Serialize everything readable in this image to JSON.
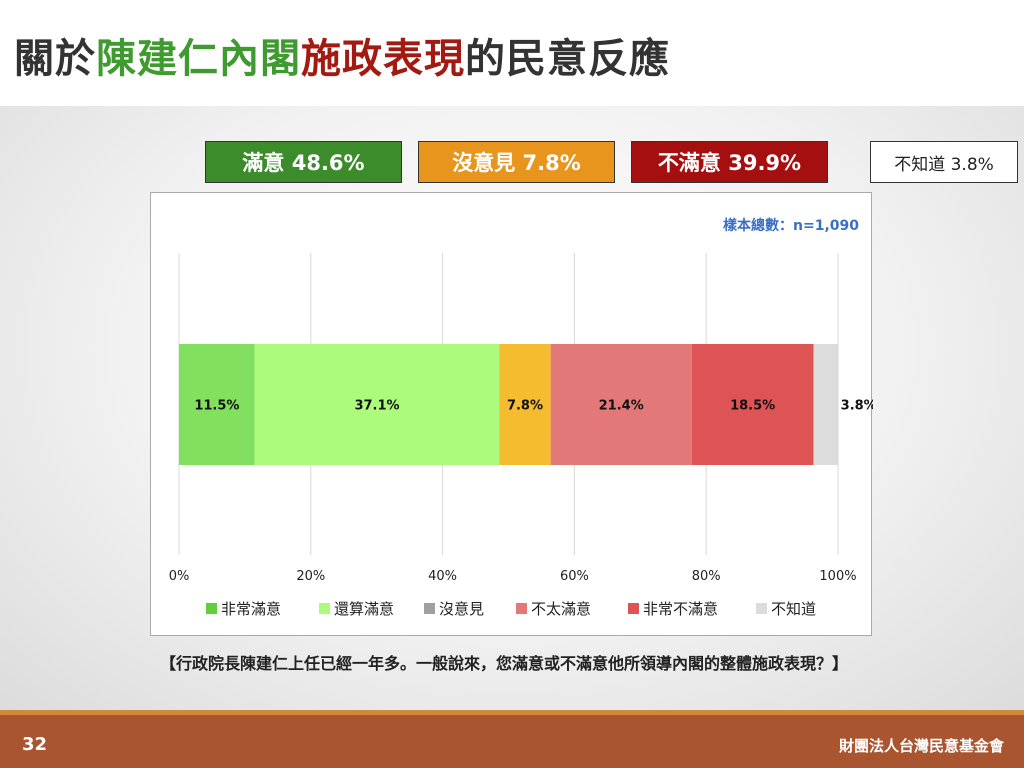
{
  "title": {
    "part1": "關於",
    "part2": "陳建仁內閣",
    "part3": "施政表現",
    "part4": "的民意反應"
  },
  "summary": {
    "satisfied": "滿意 48.6%",
    "neutral": "沒意見 7.8%",
    "dissatisfied": "不滿意 39.9%",
    "unknown": "不知道 3.8%"
  },
  "chart_data": {
    "type": "bar",
    "orientation": "horizontal-stacked",
    "sample_note": "樣本總數：n=1,090",
    "series": [
      {
        "name": "非常滿意",
        "value": 11.5,
        "label": "11.5%",
        "color": "#82e05e"
      },
      {
        "name": "還算滿意",
        "value": 37.1,
        "label": "37.1%",
        "color": "#adfb7c"
      },
      {
        "name": "沒意見",
        "value": 7.8,
        "label": "7.8%",
        "color": "#f4bc2e"
      },
      {
        "name": "不太滿意",
        "value": 21.4,
        "label": "21.4%",
        "color": "#e37878"
      },
      {
        "name": "非常不滿意",
        "value": 18.5,
        "label": "18.5%",
        "color": "#de5454"
      },
      {
        "name": "不知道",
        "value": 3.8,
        "label": "3.8%",
        "color": "#dcdcdc"
      }
    ],
    "legend_colors": [
      "#5fcf3a",
      "#adfb7c",
      "#a0a0a0",
      "#e37878",
      "#de5454",
      "#dcdcdc"
    ],
    "xlim": [
      0,
      100
    ],
    "x_ticks": [
      "0%",
      "20%",
      "40%",
      "60%",
      "80%",
      "100%"
    ],
    "grid": true,
    "legend_position": "bottom"
  },
  "question": "【行政院長陳建仁上任已經一年多。一般說來，您滿意或不滿意他所領導內閣的整體施政表現？】",
  "footer": {
    "page": "32",
    "org": "財團法人台灣民意基金會"
  }
}
